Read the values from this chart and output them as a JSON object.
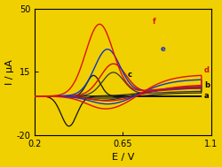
{
  "background_color": "#f0d000",
  "xlim": [
    0.2,
    1.1
  ],
  "ylim": [
    -20,
    50
  ],
  "xticks": [
    0.2,
    0.65,
    1.1
  ],
  "yticks": [
    -20,
    15,
    50
  ],
  "xlabel": "E / V",
  "ylabel": "I / μA",
  "label_fontsize": 8,
  "tick_fontsize": 7,
  "plot_colors": [
    "#111111",
    "#222222",
    "#333333",
    "#cc1111",
    "#1133cc",
    "#dd1111"
  ],
  "curve_labels": [
    "a",
    "b",
    "c",
    "d",
    "e",
    "f"
  ]
}
